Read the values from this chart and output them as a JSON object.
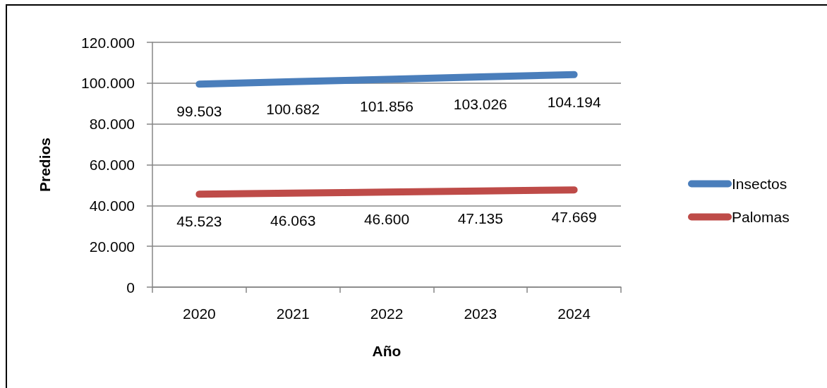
{
  "chart_data": {
    "type": "line",
    "xlabel": "Año",
    "ylabel": "Predios",
    "categories": [
      "2020",
      "2021",
      "2022",
      "2023",
      "2024"
    ],
    "series": [
      {
        "name": "Insectos",
        "color": "#4a7ebb",
        "values": [
          99503,
          100682,
          101856,
          103026,
          104194
        ],
        "value_labels": [
          "99.503",
          "100.682",
          "101.856",
          "103.026",
          "104.194"
        ]
      },
      {
        "name": "Palomas",
        "color": "#be4b48",
        "values": [
          45523,
          46063,
          46600,
          47135,
          47669
        ],
        "value_labels": [
          "45.523",
          "46.063",
          "46.600",
          "47.135",
          "47.669"
        ]
      }
    ],
    "ylim": [
      0,
      120000
    ],
    "yticks": [
      0,
      {
        "value": 20000,
        "label": "20.000"
      },
      {
        "value": 40000,
        "label": "40.000"
      },
      {
        "value": 60000,
        "label": "60.000"
      },
      {
        "value": 80000,
        "label": "80.000"
      },
      {
        "value": 100000,
        "label": "100.000"
      },
      {
        "value": 120000,
        "label": "120.000"
      }
    ],
    "grid": "y",
    "legend": "right",
    "marker": "none",
    "line_style": "solid"
  }
}
